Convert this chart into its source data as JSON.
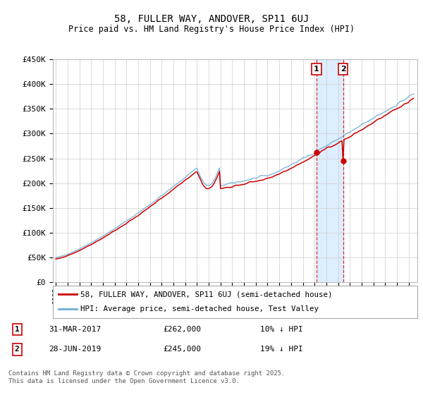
{
  "title": "58, FULLER WAY, ANDOVER, SP11 6UJ",
  "subtitle": "Price paid vs. HM Land Registry's House Price Index (HPI)",
  "ylim": [
    0,
    450000
  ],
  "yticks": [
    0,
    50000,
    100000,
    150000,
    200000,
    250000,
    300000,
    350000,
    400000,
    450000
  ],
  "hpi_color": "#6baed6",
  "price_color": "#cc0000",
  "marker1_date": "31-MAR-2017",
  "marker1_price": 262000,
  "marker1_label": "10% ↓ HPI",
  "marker2_date": "28-JUN-2019",
  "marker2_price": 245000,
  "marker2_label": "19% ↓ HPI",
  "legend_label1": "58, FULLER WAY, ANDOVER, SP11 6UJ (semi-detached house)",
  "legend_label2": "HPI: Average price, semi-detached house, Test Valley",
  "footer": "Contains HM Land Registry data © Crown copyright and database right 2025.\nThis data is licensed under the Open Government Licence v3.0.",
  "background_color": "#ffffff",
  "plot_bg_color": "#ffffff",
  "span_color": "#ddeeff"
}
